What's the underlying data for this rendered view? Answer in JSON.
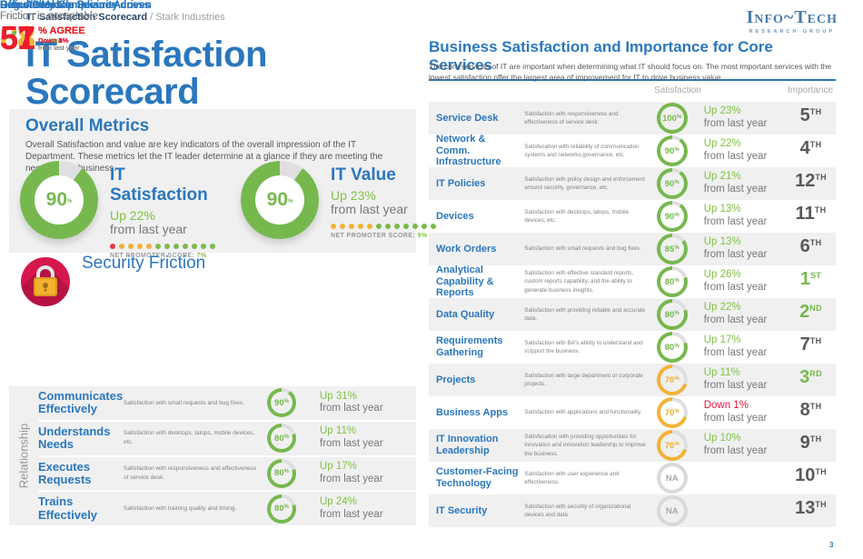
{
  "symbols": {
    "percent": "%"
  },
  "header": {
    "breadcrumb_bold": "IT Satisfaction Scorecard",
    "breadcrumb_rest": " / Stark Industries",
    "logo_title": "Info~Tech",
    "logo_subtitle": "RESEARCH GROUP",
    "page_number": "3"
  },
  "left": {
    "title_line1": "IT Satisfaction",
    "title_line2": "Scorecard",
    "overall": {
      "heading": "Overall Metrics",
      "description": "Overall Satisfaction and value are key indicators of the overall impression of the IT Department. These metrics let the IT leader determine at a glance if they are meeting the needs of the business.",
      "gauges": [
        {
          "value": "90",
          "score_color": "green",
          "label": "IT Satisfaction",
          "change": "Up 22%",
          "note": "from last year",
          "nps_label": "NET PROMOTER SCORE:",
          "nps_value": "7%",
          "dots": [
            "red",
            "orange",
            "orange",
            "orange",
            "orange",
            "green",
            "green",
            "green",
            "green",
            "green",
            "green",
            "green"
          ]
        },
        {
          "value": "90",
          "score_color": "green",
          "label": "IT Value",
          "change": "Up 23%",
          "note": "from last year",
          "nps_label": "NET PROMOTER SCORE:",
          "nps_value": "9%",
          "dots": [
            "orange",
            "orange",
            "orange",
            "orange",
            "orange",
            "green",
            "green",
            "green",
            "green",
            "green",
            "green",
            "green"
          ]
        }
      ]
    },
    "security": {
      "heading": "Security Friction",
      "metrics": [
        {
          "name": "Remote/Mobile Device Access",
          "status": "Friction is acceptable",
          "value": "88",
          "value_color": "green",
          "agree": "% AGREE",
          "change": "Down 2%",
          "change_dir": "down",
          "note": "from last year"
        },
        {
          "name": "Regulatory Compliance-driven",
          "status": "Friction is acceptable",
          "value": "68",
          "value_color": "yellow",
          "agree": "% AGREE",
          "change": "Up 8%",
          "change_dir": "up",
          "note": "from last year"
        },
        {
          "name": "Office/Desktop Security",
          "status": "Friction is acceptable",
          "value": "57",
          "value_color": "red",
          "agree": "% AGREE",
          "change": "Down 4%",
          "change_dir": "down",
          "note": "from last year"
        },
        {
          "name": "Data Access",
          "status": "Friction is acceptable",
          "value": "51",
          "value_color": "red",
          "agree": "% AGREE",
          "change": "Down 5%",
          "change_dir": "down",
          "note": "from last year"
        }
      ]
    },
    "relationship": {
      "axis_label": "Relationship",
      "rows": [
        {
          "name": "Communicates Effectively",
          "description": "Satisfaction with small requests and bug fixes.",
          "score": "90",
          "score_color": "green",
          "change": "Up 31%",
          "change_dir": "up",
          "note": "from last year"
        },
        {
          "name": "Understands Needs",
          "description": "Satisfaction with desktops, latops, mobile devices, etc.",
          "score": "80",
          "score_color": "green",
          "change": "Up 11%",
          "change_dir": "up",
          "note": "from last year"
        },
        {
          "name": "Executes Requests",
          "description": "Satisfaction with responsiveness and effectiveness of service desk.",
          "score": "80",
          "score_color": "green",
          "change": "Up 17%",
          "change_dir": "up",
          "note": "from last year"
        },
        {
          "name": "Trains Effectively",
          "description": "Satisfaction with training quality and timing.",
          "score": "80",
          "score_color": "green",
          "change": "Up 24%",
          "change_dir": "up",
          "note": "from last year"
        }
      ]
    }
  },
  "right": {
    "heading": "Business Satisfaction and Importance for Core Services",
    "description": "The core services of IT are important when determining what IT should focus on. The most important services with the lowest satisfaction offer the largest area of improvement for IT to drive business value.",
    "col_satisfaction": "Satisfaction",
    "col_importance": "Importance",
    "rows": [
      {
        "name": "Service Desk",
        "description": "Satisfaction with responsiveness and effectiveness of service desk.",
        "score": "100",
        "score_color": "green",
        "change": "Up 23%",
        "change_dir": "up",
        "note": "from last year",
        "rank": "5",
        "rank_suffix": "TH",
        "rank_color": "dark"
      },
      {
        "name": "Network & Comm. Infrastructure",
        "description": "Satisfecation with reliability of communication systems and networks.governance, etc.",
        "score": "90",
        "score_color": "green",
        "change": "Up 22%",
        "change_dir": "up",
        "note": "from last year",
        "rank": "4",
        "rank_suffix": "TH",
        "rank_color": "dark"
      },
      {
        "name": "IT Policies",
        "description": "Satisfaction with policy design and enforcement around security, governance, etc.",
        "score": "90",
        "score_color": "green",
        "change": "Up 21%",
        "change_dir": "up",
        "note": "from last year",
        "rank": "12",
        "rank_suffix": "TH",
        "rank_color": "dark"
      },
      {
        "name": "Devices",
        "description": "Satisfaction with desktops, latops, mobile devices, etc.",
        "score": "90",
        "score_color": "green",
        "change": "Up 13%",
        "change_dir": "up",
        "note": "from last year",
        "rank": "11",
        "rank_suffix": "TH",
        "rank_color": "dark"
      },
      {
        "name": "Work Orders",
        "description": "Satisfaction with small requests and bug fixes.",
        "score": "85",
        "score_color": "green",
        "change": "Up 13%",
        "change_dir": "up",
        "note": "from last year",
        "rank": "6",
        "rank_suffix": "TH",
        "rank_color": "dark"
      },
      {
        "name": "Analytical Capability & Reports",
        "description": "Satisfaction with effective standard reports, custom reports capability, and the ability to generate business insights.",
        "score": "80",
        "score_color": "green",
        "change": "Up 26%",
        "change_dir": "up",
        "note": "from last year",
        "rank": "1",
        "rank_suffix": "ST",
        "rank_color": "green"
      },
      {
        "name": "Data Quality",
        "description": "Satisfaction with providing reliable and accurate data.",
        "score": "80",
        "score_color": "green",
        "change": "Up 22%",
        "change_dir": "up",
        "note": "from last year",
        "rank": "2",
        "rank_suffix": "ND",
        "rank_color": "green"
      },
      {
        "name": "Requirements Gathering",
        "description": "Satisfaction with BA's ability to understand and sUpport the business.",
        "score": "80",
        "score_color": "green",
        "change": "Up 17%",
        "change_dir": "up",
        "note": "from last year",
        "rank": "7",
        "rank_suffix": "TH",
        "rank_color": "dark"
      },
      {
        "name": "Projects",
        "description": "Satisfaction with large department or corporate projects.",
        "score": "70",
        "score_color": "yellow",
        "change": "Up 11%",
        "change_dir": "up",
        "note": "from last year",
        "rank": "3",
        "rank_suffix": "RD",
        "rank_color": "green"
      },
      {
        "name": "Business Apps",
        "description": "Satisfaction with applications and functionality.",
        "score": "70",
        "score_color": "yellow",
        "change": "Down 1%",
        "change_dir": "down",
        "note": "from last year",
        "rank": "8",
        "rank_suffix": "TH",
        "rank_color": "dark"
      },
      {
        "name": "IT Innovation Leadership",
        "description": "Satisfecation with providing opportunities for innovation and innovation leadership to improve the business.",
        "score": "70",
        "score_color": "yellow",
        "change": "Up 10%",
        "change_dir": "up",
        "note": "from last year",
        "rank": "9",
        "rank_suffix": "TH",
        "rank_color": "dark"
      },
      {
        "name": "Customer-Facing Technology",
        "description": "Satisfaction with user experience and effectiveness.",
        "score": "NA",
        "score_color": "na",
        "change": "",
        "change_dir": "",
        "note": "",
        "rank": "10",
        "rank_suffix": "TH",
        "rank_color": "dark"
      },
      {
        "name": "IT Security",
        "description": "Satisfaction with security of organizational devices and data.",
        "score": "NA",
        "score_color": "na",
        "change": "",
        "change_dir": "",
        "note": "",
        "rank": "13",
        "rank_suffix": "TH",
        "rank_color": "dark"
      }
    ]
  }
}
